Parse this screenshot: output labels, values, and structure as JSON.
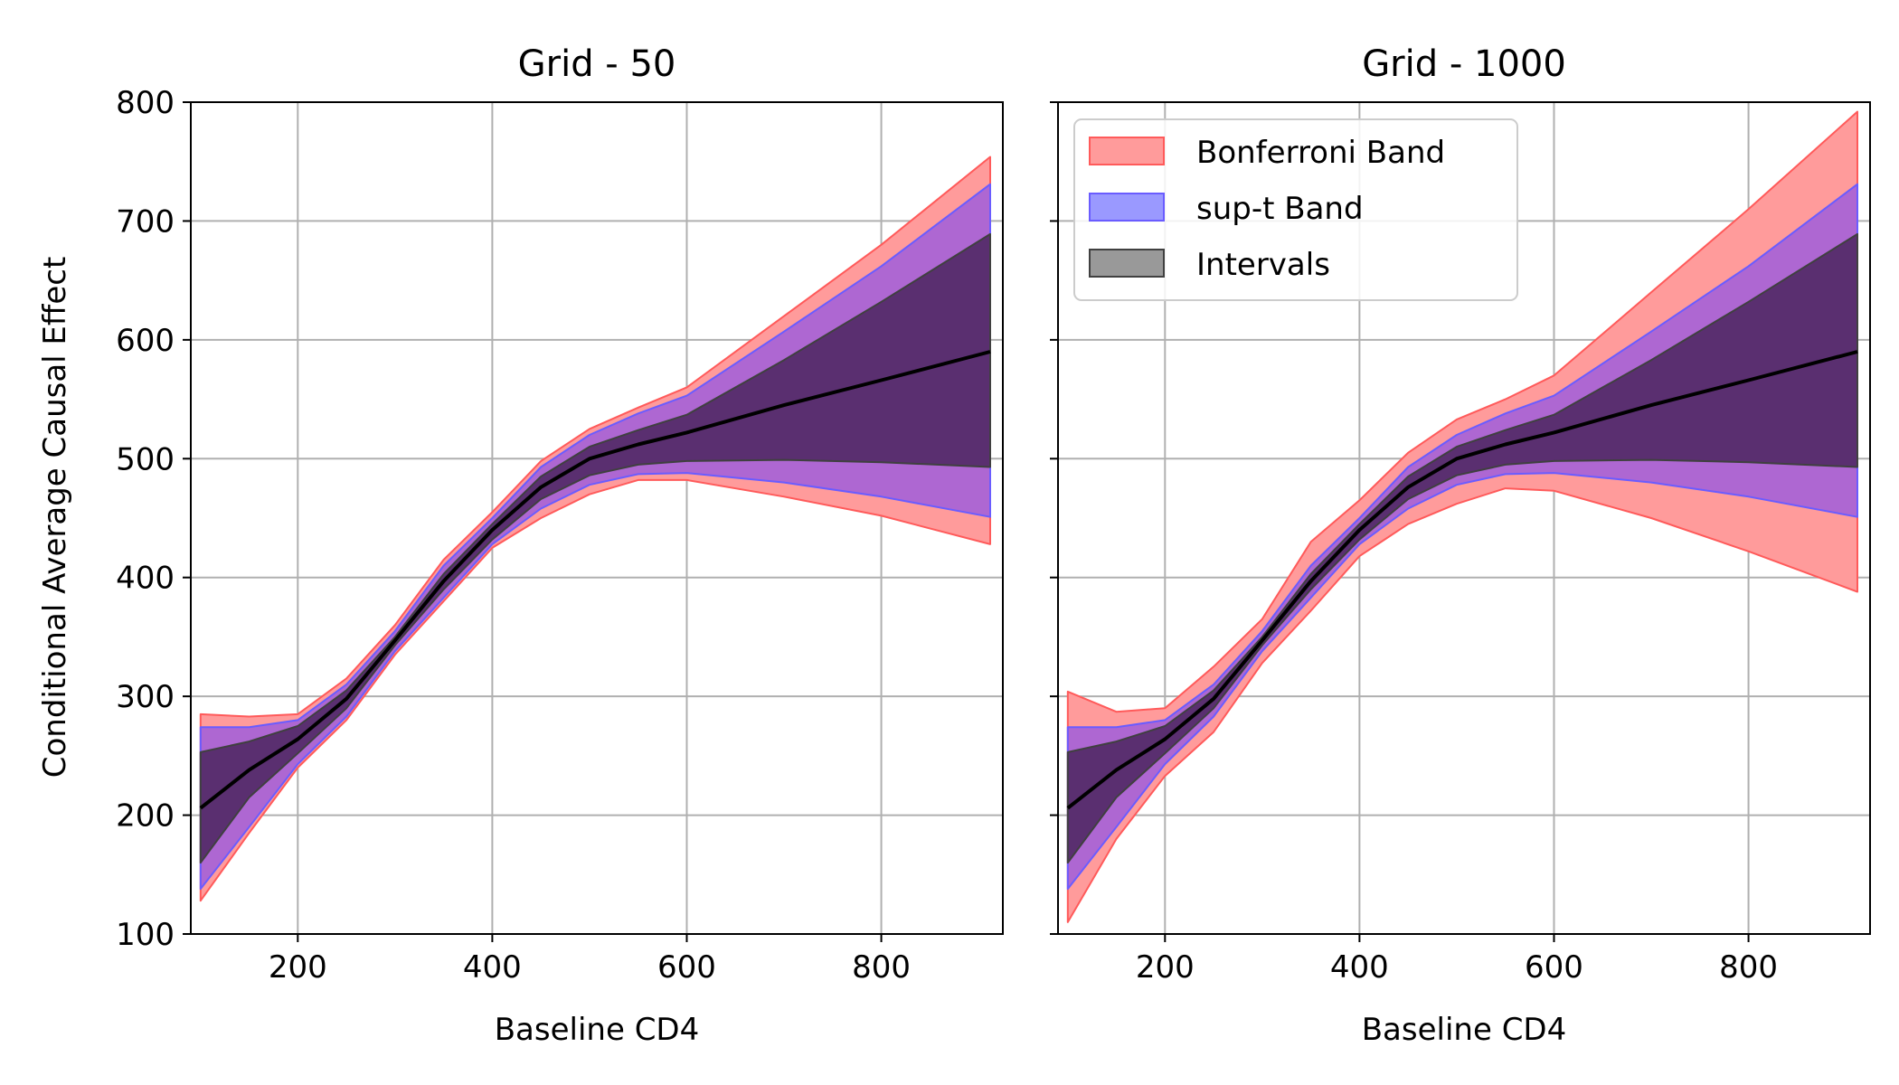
{
  "figure": {
    "y_label": "Conditional Average Causal Effect"
  },
  "legend": {
    "entries": [
      {
        "label": "Bonferroni Band",
        "color": "#ff5a5a",
        "fill": "#ff9b9b"
      },
      {
        "label": "sup-t Band",
        "color": "#6a5cff",
        "fill": "#9a99ff"
      },
      {
        "label": "Intervals",
        "color": "#404040",
        "fill": "#999999"
      }
    ]
  },
  "chart_data": [
    {
      "type": "area",
      "title": "Grid - 50",
      "xlabel": "Baseline CD4",
      "ylabel": "Conditional Average Causal Effect",
      "xlim": [
        90,
        925
      ],
      "ylim": [
        100,
        800
      ],
      "xticks": [
        200,
        400,
        600,
        800
      ],
      "yticks": [
        100,
        200,
        300,
        400,
        500,
        600,
        700,
        800
      ],
      "grid": true,
      "x": [
        100,
        150,
        200,
        250,
        300,
        350,
        400,
        450,
        500,
        550,
        600,
        700,
        800,
        912
      ],
      "series": [
        {
          "name": "Bonferroni Band",
          "lower": [
            128,
            185,
            240,
            280,
            335,
            380,
            425,
            450,
            470,
            482,
            482,
            468,
            452,
            428
          ],
          "upper": [
            285,
            283,
            285,
            315,
            360,
            415,
            455,
            498,
            525,
            543,
            560,
            620,
            680,
            754
          ]
        },
        {
          "name": "sup-t Band",
          "lower": [
            138,
            190,
            243,
            283,
            338,
            383,
            428,
            458,
            478,
            487,
            488,
            480,
            468,
            451
          ],
          "upper": [
            274,
            274,
            280,
            310,
            355,
            410,
            450,
            493,
            520,
            538,
            553,
            607,
            662,
            731
          ]
        },
        {
          "name": "Intervals",
          "lower": [
            160,
            215,
            252,
            290,
            343,
            390,
            432,
            466,
            486,
            495,
            498,
            499,
            497,
            493
          ],
          "upper": [
            253,
            262,
            275,
            305,
            350,
            403,
            445,
            485,
            510,
            524,
            537,
            583,
            632,
            689
          ]
        },
        {
          "name": "Estimate",
          "values": [
            206,
            238,
            264,
            298,
            347,
            397,
            440,
            476,
            500,
            512,
            522,
            545,
            566,
            590
          ]
        }
      ]
    },
    {
      "type": "area",
      "title": "Grid - 1000",
      "xlabel": "Baseline CD4",
      "ylabel": "",
      "xlim": [
        90,
        925
      ],
      "ylim": [
        100,
        800
      ],
      "xticks": [
        200,
        400,
        600,
        800
      ],
      "yticks": [
        100,
        200,
        300,
        400,
        500,
        600,
        700,
        800
      ],
      "grid": true,
      "x": [
        100,
        150,
        200,
        250,
        300,
        350,
        400,
        450,
        500,
        550,
        600,
        700,
        800,
        912
      ],
      "series": [
        {
          "name": "Bonferroni Band",
          "lower": [
            110,
            180,
            233,
            270,
            328,
            372,
            418,
            445,
            462,
            475,
            473,
            450,
            422,
            388
          ],
          "upper": [
            304,
            287,
            290,
            325,
            365,
            430,
            465,
            505,
            533,
            550,
            570,
            640,
            710,
            792
          ]
        },
        {
          "name": "sup-t Band",
          "lower": [
            138,
            190,
            243,
            283,
            338,
            383,
            428,
            458,
            478,
            487,
            488,
            480,
            468,
            451
          ],
          "upper": [
            274,
            274,
            280,
            310,
            355,
            410,
            450,
            493,
            520,
            538,
            553,
            607,
            662,
            731
          ]
        },
        {
          "name": "Intervals",
          "lower": [
            160,
            215,
            252,
            290,
            343,
            390,
            432,
            466,
            486,
            495,
            498,
            499,
            497,
            493
          ],
          "upper": [
            253,
            262,
            275,
            305,
            350,
            403,
            445,
            485,
            510,
            524,
            537,
            583,
            632,
            689
          ]
        },
        {
          "name": "Estimate",
          "values": [
            206,
            238,
            264,
            298,
            347,
            397,
            440,
            476,
            500,
            512,
            522,
            545,
            566,
            590
          ]
        }
      ]
    }
  ]
}
